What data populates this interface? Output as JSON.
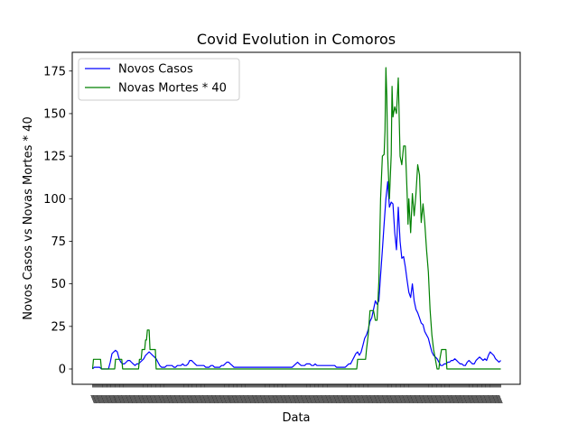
{
  "chart_data": {
    "type": "line",
    "title": "Covid Evolution in Comoros",
    "xlabel": "Data",
    "ylabel": "Novos Casos vs Novas Mortes * 40",
    "ylim": [
      -9,
      186
    ],
    "y_ticks": [
      0,
      25,
      50,
      75,
      100,
      125,
      150,
      175
    ],
    "x_range": [
      -23,
      484
    ],
    "x_tick_labels": "overlapping, unreadable",
    "legend_position": "upper-left",
    "grid": false,
    "series": [
      {
        "name": "Novos Casos",
        "color": "#0000ff",
        "points": [
          [
            0,
            0
          ],
          [
            2,
            1
          ],
          [
            4,
            1
          ],
          [
            6,
            1
          ],
          [
            8,
            1
          ],
          [
            10,
            0
          ],
          [
            12,
            0
          ],
          [
            14,
            0
          ],
          [
            16,
            0
          ],
          [
            18,
            0
          ],
          [
            20,
            4
          ],
          [
            22,
            9
          ],
          [
            24,
            10
          ],
          [
            26,
            11
          ],
          [
            28,
            10
          ],
          [
            30,
            6
          ],
          [
            32,
            4
          ],
          [
            34,
            3
          ],
          [
            36,
            3
          ],
          [
            38,
            4
          ],
          [
            40,
            5
          ],
          [
            42,
            5
          ],
          [
            44,
            4
          ],
          [
            46,
            3
          ],
          [
            48,
            2
          ],
          [
            50,
            3
          ],
          [
            52,
            3
          ],
          [
            54,
            4
          ],
          [
            56,
            5
          ],
          [
            58,
            6
          ],
          [
            60,
            8
          ],
          [
            62,
            9
          ],
          [
            64,
            10
          ],
          [
            66,
            9
          ],
          [
            68,
            8
          ],
          [
            70,
            7
          ],
          [
            72,
            6
          ],
          [
            74,
            4
          ],
          [
            76,
            2
          ],
          [
            78,
            1
          ],
          [
            80,
            1
          ],
          [
            82,
            1
          ],
          [
            84,
            2
          ],
          [
            86,
            2
          ],
          [
            88,
            2
          ],
          [
            90,
            2
          ],
          [
            92,
            1
          ],
          [
            94,
            1
          ],
          [
            96,
            2
          ],
          [
            98,
            2
          ],
          [
            100,
            2
          ],
          [
            102,
            3
          ],
          [
            104,
            2
          ],
          [
            106,
            2
          ],
          [
            108,
            3
          ],
          [
            110,
            5
          ],
          [
            112,
            5
          ],
          [
            114,
            4
          ],
          [
            116,
            3
          ],
          [
            118,
            2
          ],
          [
            120,
            2
          ],
          [
            122,
            2
          ],
          [
            124,
            2
          ],
          [
            126,
            2
          ],
          [
            128,
            1
          ],
          [
            130,
            1
          ],
          [
            132,
            1
          ],
          [
            134,
            2
          ],
          [
            136,
            2
          ],
          [
            138,
            1
          ],
          [
            140,
            1
          ],
          [
            142,
            1
          ],
          [
            144,
            1
          ],
          [
            146,
            2
          ],
          [
            148,
            2
          ],
          [
            150,
            3
          ],
          [
            152,
            4
          ],
          [
            154,
            4
          ],
          [
            156,
            3
          ],
          [
            158,
            2
          ],
          [
            160,
            1
          ],
          [
            162,
            1
          ],
          [
            164,
            1
          ],
          [
            166,
            1
          ],
          [
            168,
            1
          ],
          [
            170,
            1
          ],
          [
            172,
            1
          ],
          [
            174,
            1
          ],
          [
            176,
            1
          ],
          [
            178,
            1
          ],
          [
            180,
            1
          ],
          [
            182,
            1
          ],
          [
            184,
            1
          ],
          [
            186,
            1
          ],
          [
            188,
            1
          ],
          [
            190,
            1
          ],
          [
            192,
            1
          ],
          [
            194,
            1
          ],
          [
            196,
            1
          ],
          [
            198,
            1
          ],
          [
            200,
            1
          ],
          [
            202,
            1
          ],
          [
            204,
            1
          ],
          [
            206,
            1
          ],
          [
            208,
            1
          ],
          [
            210,
            1
          ],
          [
            212,
            1
          ],
          [
            214,
            1
          ],
          [
            216,
            1
          ],
          [
            218,
            1
          ],
          [
            220,
            1
          ],
          [
            222,
            1
          ],
          [
            224,
            1
          ],
          [
            226,
            1
          ],
          [
            228,
            2
          ],
          [
            230,
            3
          ],
          [
            232,
            4
          ],
          [
            234,
            3
          ],
          [
            236,
            2
          ],
          [
            238,
            2
          ],
          [
            240,
            2
          ],
          [
            242,
            3
          ],
          [
            244,
            3
          ],
          [
            246,
            3
          ],
          [
            248,
            2
          ],
          [
            250,
            2
          ],
          [
            252,
            3
          ],
          [
            254,
            2
          ],
          [
            256,
            2
          ],
          [
            258,
            2
          ],
          [
            260,
            2
          ],
          [
            262,
            2
          ],
          [
            264,
            2
          ],
          [
            266,
            2
          ],
          [
            268,
            2
          ],
          [
            270,
            2
          ],
          [
            272,
            2
          ],
          [
            274,
            2
          ],
          [
            276,
            1
          ],
          [
            278,
            1
          ],
          [
            280,
            1
          ],
          [
            282,
            1
          ],
          [
            284,
            1
          ],
          [
            286,
            1
          ],
          [
            288,
            2
          ],
          [
            290,
            3
          ],
          [
            292,
            3
          ],
          [
            294,
            5
          ],
          [
            296,
            7
          ],
          [
            298,
            9
          ],
          [
            300,
            10
          ],
          [
            302,
            8
          ],
          [
            304,
            10
          ],
          [
            306,
            14
          ],
          [
            308,
            18
          ],
          [
            310,
            20
          ],
          [
            312,
            23
          ],
          [
            314,
            28
          ],
          [
            316,
            30
          ],
          [
            318,
            35
          ],
          [
            320,
            40
          ],
          [
            322,
            38
          ],
          [
            324,
            40
          ],
          [
            326,
            55
          ],
          [
            328,
            70
          ],
          [
            330,
            85
          ],
          [
            332,
            100
          ],
          [
            334,
            110
          ],
          [
            336,
            95
          ],
          [
            338,
            98
          ],
          [
            340,
            97
          ],
          [
            342,
            80
          ],
          [
            344,
            70
          ],
          [
            346,
            95
          ],
          [
            348,
            75
          ],
          [
            350,
            65
          ],
          [
            352,
            66
          ],
          [
            354,
            60
          ],
          [
            356,
            52
          ],
          [
            358,
            45
          ],
          [
            360,
            42
          ],
          [
            362,
            50
          ],
          [
            364,
            40
          ],
          [
            366,
            35
          ],
          [
            368,
            33
          ],
          [
            370,
            30
          ],
          [
            372,
            27
          ],
          [
            374,
            26
          ],
          [
            376,
            22
          ],
          [
            378,
            20
          ],
          [
            380,
            18
          ],
          [
            382,
            14
          ],
          [
            384,
            10
          ],
          [
            386,
            8
          ],
          [
            388,
            7
          ],
          [
            390,
            6
          ],
          [
            392,
            4
          ],
          [
            394,
            2
          ],
          [
            396,
            2
          ],
          [
            398,
            3
          ],
          [
            400,
            3
          ],
          [
            402,
            4
          ],
          [
            404,
            4
          ],
          [
            406,
            5
          ],
          [
            408,
            5
          ],
          [
            410,
            6
          ],
          [
            412,
            5
          ],
          [
            414,
            4
          ],
          [
            416,
            3
          ],
          [
            418,
            3
          ],
          [
            420,
            2
          ],
          [
            422,
            2
          ],
          [
            424,
            4
          ],
          [
            426,
            5
          ],
          [
            428,
            4
          ],
          [
            430,
            3
          ],
          [
            432,
            3
          ],
          [
            434,
            5
          ],
          [
            436,
            6
          ],
          [
            438,
            7
          ],
          [
            440,
            6
          ],
          [
            442,
            5
          ],
          [
            444,
            6
          ],
          [
            446,
            5
          ],
          [
            448,
            8
          ],
          [
            450,
            10
          ],
          [
            452,
            9
          ],
          [
            454,
            8
          ],
          [
            456,
            6
          ],
          [
            458,
            5
          ],
          [
            460,
            4
          ],
          [
            462,
            5
          ]
        ]
      },
      {
        "name": "Novas Mortes * 40",
        "color": "#008000",
        "points": [
          [
            0,
            0
          ],
          [
            1,
            5.7
          ],
          [
            9,
            5.7
          ],
          [
            10,
            0
          ],
          [
            25,
            0
          ],
          [
            26,
            5.7
          ],
          [
            33,
            5.7
          ],
          [
            34,
            0
          ],
          [
            52,
            0
          ],
          [
            53,
            5.7
          ],
          [
            55,
            5.7
          ],
          [
            56,
            11.4
          ],
          [
            59,
            11.4
          ],
          [
            60,
            17
          ],
          [
            61,
            17
          ],
          [
            62,
            22.9
          ],
          [
            64,
            22.9
          ],
          [
            65,
            11.4
          ],
          [
            71,
            11.4
          ],
          [
            72,
            0
          ],
          [
            299,
            0
          ],
          [
            300,
            5.7
          ],
          [
            309,
            5.7
          ],
          [
            310,
            11.4
          ],
          [
            312,
            20
          ],
          [
            314,
            34.3
          ],
          [
            318,
            34.3
          ],
          [
            320,
            28.6
          ],
          [
            322,
            28.6
          ],
          [
            324,
            51.4
          ],
          [
            326,
            100
          ],
          [
            328,
            125
          ],
          [
            330,
            126
          ],
          [
            331,
            140
          ],
          [
            332,
            177
          ],
          [
            333,
            160
          ],
          [
            334,
            125
          ],
          [
            336,
            100
          ],
          [
            338,
            126
          ],
          [
            339,
            166
          ],
          [
            340,
            148
          ],
          [
            342,
            154
          ],
          [
            344,
            150
          ],
          [
            346,
            171
          ],
          [
            348,
            125
          ],
          [
            350,
            120
          ],
          [
            352,
            131
          ],
          [
            354,
            131
          ],
          [
            356,
            103
          ],
          [
            357,
            85
          ],
          [
            358,
            100
          ],
          [
            360,
            80
          ],
          [
            362,
            103
          ],
          [
            364,
            90
          ],
          [
            366,
            103
          ],
          [
            368,
            120
          ],
          [
            370,
            114
          ],
          [
            372,
            86
          ],
          [
            374,
            97
          ],
          [
            376,
            86
          ],
          [
            378,
            70
          ],
          [
            380,
            57
          ],
          [
            382,
            35
          ],
          [
            384,
            20
          ],
          [
            386,
            11.4
          ],
          [
            388,
            5.7
          ],
          [
            390,
            0
          ],
          [
            392,
            0
          ],
          [
            393,
            5.7
          ],
          [
            395,
            11.4
          ],
          [
            400,
            11.4
          ],
          [
            401,
            0
          ],
          [
            462,
            0
          ]
        ]
      }
    ]
  }
}
